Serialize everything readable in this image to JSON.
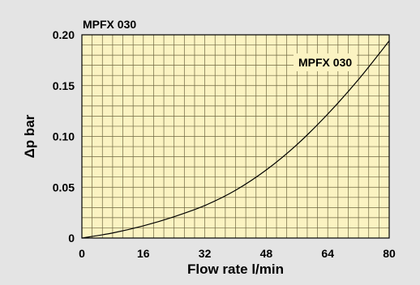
{
  "colors": {
    "background": "#e4e4e4",
    "plot_background": "#fbf3c2",
    "grid": "#6e6640",
    "curve": "#000000",
    "frame": "#000000",
    "label_box": "#fbf3c2"
  },
  "chart_data": {
    "type": "line",
    "title": "MPFX 030",
    "xlabel": "Flow rate l/min",
    "ylabel": "Δp bar",
    "xlim": [
      0,
      80
    ],
    "ylim": [
      0,
      0.2
    ],
    "grid": true,
    "x_ticks": [
      0,
      16,
      32,
      48,
      64,
      80
    ],
    "x_tick_labels": [
      "0",
      "16",
      "32",
      "48",
      "64",
      "80"
    ],
    "y_ticks": [
      0,
      0.05,
      0.1,
      0.15,
      0.2
    ],
    "y_tick_labels": [
      "0",
      "0.05",
      "0.10",
      "0.15",
      "0.20"
    ],
    "series": [
      {
        "name": "MPFX 030",
        "x": [
          0,
          8,
          16,
          24,
          32,
          40,
          48,
          56,
          64,
          72,
          80
        ],
        "y": [
          0,
          0.005,
          0.012,
          0.021,
          0.032,
          0.047,
          0.067,
          0.092,
          0.122,
          0.156,
          0.194
        ]
      }
    ]
  }
}
